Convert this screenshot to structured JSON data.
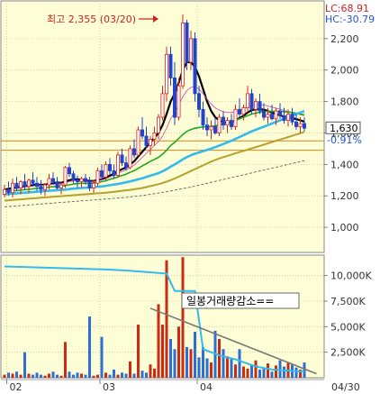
{
  "chart_data": [
    {
      "type": "candlestick",
      "panel": "price",
      "x_axis": {
        "ticks": [
          "02",
          "03",
          "04",
          "04/30"
        ]
      },
      "y_axis": {
        "position": "right",
        "ticks": [
          1000,
          1200,
          1400,
          1600,
          1800,
          2000,
          2200
        ],
        "tick_labels": [
          "1,000",
          "1,200",
          "1,400",
          "1,600",
          "1,800",
          "2,000",
          "2,200"
        ],
        "ylim": [
          840,
          2440
        ]
      },
      "annotation": {
        "text": "최고 2,355 (03/20)",
        "value": 2355
      },
      "indicators": {
        "lc": "LC:68.91",
        "hc": "HC:-30.79"
      },
      "last_price": {
        "label": "1,630",
        "value": 1630
      },
      "change": {
        "label": "-0.91%"
      },
      "reference_levels": [
        1490,
        1550
      ],
      "candles": [
        [
          1210,
          1270,
          1190,
          1240
        ],
        [
          1240,
          1290,
          1200,
          1220
        ],
        [
          1220,
          1310,
          1190,
          1280
        ],
        [
          1280,
          1320,
          1230,
          1250
        ],
        [
          1250,
          1300,
          1210,
          1290
        ],
        [
          1290,
          1340,
          1240,
          1260
        ],
        [
          1260,
          1310,
          1220,
          1300
        ],
        [
          1300,
          1350,
          1260,
          1280
        ],
        [
          1280,
          1320,
          1230,
          1260
        ],
        [
          1260,
          1300,
          1210,
          1240
        ],
        [
          1240,
          1280,
          1200,
          1270
        ],
        [
          1270,
          1340,
          1240,
          1310
        ],
        [
          1310,
          1350,
          1270,
          1290
        ],
        [
          1290,
          1320,
          1240,
          1250
        ],
        [
          1250,
          1290,
          1210,
          1270
        ],
        [
          1270,
          1390,
          1250,
          1380
        ],
        [
          1380,
          1410,
          1320,
          1340
        ],
        [
          1340,
          1360,
          1280,
          1300
        ],
        [
          1300,
          1330,
          1250,
          1290
        ],
        [
          1290,
          1320,
          1250,
          1310
        ],
        [
          1310,
          1340,
          1270,
          1290
        ],
        [
          1290,
          1320,
          1230,
          1250
        ],
        [
          1250,
          1300,
          1220,
          1280
        ],
        [
          1280,
          1380,
          1260,
          1360
        ],
        [
          1360,
          1400,
          1300,
          1320
        ],
        [
          1320,
          1420,
          1300,
          1400
        ],
        [
          1400,
          1440,
          1340,
          1360
        ],
        [
          1360,
          1400,
          1310,
          1330
        ],
        [
          1330,
          1480,
          1320,
          1460
        ],
        [
          1460,
          1500,
          1390,
          1410
        ],
        [
          1410,
          1450,
          1360,
          1380
        ],
        [
          1380,
          1520,
          1370,
          1500
        ],
        [
          1500,
          1560,
          1440,
          1460
        ],
        [
          1460,
          1640,
          1450,
          1620
        ],
        [
          1620,
          1700,
          1560,
          1580
        ],
        [
          1580,
          1640,
          1500,
          1520
        ],
        [
          1520,
          1580,
          1460,
          1560
        ],
        [
          1560,
          1640,
          1520,
          1600
        ],
        [
          1600,
          1720,
          1560,
          1700
        ],
        [
          1700,
          1900,
          1680,
          1850
        ],
        [
          1850,
          2150,
          1800,
          2100
        ],
        [
          2100,
          2150,
          1900,
          1950
        ],
        [
          1950,
          2050,
          1650,
          1700
        ],
        [
          1700,
          1950,
          1680,
          1900
        ],
        [
          1900,
          2355,
          1880,
          2300
        ],
        [
          2300,
          2320,
          2000,
          2050
        ],
        [
          2050,
          2250,
          2000,
          2200
        ],
        [
          2200,
          2240,
          1800,
          1850
        ],
        [
          1850,
          1900,
          1700,
          1750
        ],
        [
          1750,
          1800,
          1620,
          1650
        ],
        [
          1650,
          1700,
          1580,
          1620
        ],
        [
          1620,
          1680,
          1560,
          1640
        ],
        [
          1640,
          1700,
          1590,
          1600
        ],
        [
          1600,
          1720,
          1580,
          1700
        ],
        [
          1700,
          1740,
          1620,
          1650
        ],
        [
          1650,
          1700,
          1600,
          1680
        ],
        [
          1680,
          1720,
          1620,
          1640
        ],
        [
          1640,
          1780,
          1620,
          1750
        ],
        [
          1750,
          1820,
          1700,
          1720
        ],
        [
          1720,
          1780,
          1680,
          1760
        ],
        [
          1760,
          1900,
          1740,
          1850
        ],
        [
          1850,
          1880,
          1720,
          1750
        ],
        [
          1750,
          1820,
          1700,
          1800
        ],
        [
          1800,
          1850,
          1720,
          1740
        ],
        [
          1740,
          1790,
          1680,
          1700
        ],
        [
          1700,
          1760,
          1660,
          1720
        ],
        [
          1720,
          1780,
          1680,
          1690
        ],
        [
          1690,
          1760,
          1650,
          1740
        ],
        [
          1740,
          1790,
          1690,
          1710
        ],
        [
          1710,
          1760,
          1660,
          1680
        ],
        [
          1680,
          1750,
          1640,
          1720
        ],
        [
          1720,
          1760,
          1650,
          1670
        ],
        [
          1670,
          1720,
          1620,
          1640
        ],
        [
          1640,
          1700,
          1600,
          1660
        ],
        [
          1660,
          1700,
          1610,
          1630
        ]
      ],
      "moving_averages": [
        {
          "color": "#000000",
          "width": 2.2,
          "values": [
            1240,
            1245,
            1250,
            1255,
            1258,
            1262,
            1265,
            1268,
            1270,
            1270,
            1272,
            1275,
            1280,
            1282,
            1284,
            1290,
            1300,
            1305,
            1305,
            1302,
            1298,
            1295,
            1295,
            1300,
            1305,
            1315,
            1330,
            1340,
            1355,
            1370,
            1380,
            1400,
            1420,
            1450,
            1480,
            1510,
            1540,
            1570,
            1600,
            1650,
            1720,
            1800,
            1850,
            1920,
            2000,
            2050,
            2050,
            2020,
            1960,
            1880,
            1800,
            1740,
            1700,
            1680,
            1670,
            1665,
            1668,
            1680,
            1695,
            1710,
            1730,
            1745,
            1750,
            1752,
            1748,
            1740,
            1730,
            1720,
            1712,
            1705,
            1700,
            1695,
            1688,
            1680,
            1672
          ]
        },
        {
          "color": "#cc44cc",
          "width": 0.8,
          "values": [
            1230,
            1235,
            1240,
            1245,
            1250,
            1255,
            1258,
            1262,
            1265,
            1266,
            1268,
            1270,
            1274,
            1276,
            1278,
            1282,
            1290,
            1295,
            1296,
            1295,
            1293,
            1292,
            1292,
            1296,
            1300,
            1308,
            1320,
            1330,
            1342,
            1355,
            1365,
            1380,
            1395,
            1420,
            1445,
            1470,
            1495,
            1520,
            1545,
            1580,
            1630,
            1690,
            1730,
            1780,
            1830,
            1870,
            1890,
            1895,
            1880,
            1850,
            1815,
            1785,
            1760,
            1745,
            1735,
            1730,
            1730,
            1735,
            1745,
            1755,
            1765,
            1775,
            1778,
            1780,
            1778,
            1772,
            1765,
            1758,
            1750,
            1743,
            1737,
            1730,
            1723,
            1716,
            1710
          ]
        },
        {
          "color": "#22aa22",
          "width": 1.6,
          "values": [
            1225,
            1228,
            1230,
            1233,
            1236,
            1240,
            1242,
            1245,
            1248,
            1250,
            1252,
            1255,
            1258,
            1260,
            1262,
            1265,
            1270,
            1275,
            1278,
            1280,
            1280,
            1280,
            1282,
            1286,
            1290,
            1296,
            1305,
            1312,
            1320,
            1330,
            1338,
            1350,
            1360,
            1375,
            1390,
            1405,
            1420,
            1432,
            1445,
            1465,
            1490,
            1520,
            1540,
            1565,
            1590,
            1610,
            1622,
            1630,
            1635,
            1638,
            1640,
            1642,
            1645,
            1650,
            1656,
            1662,
            1670,
            1680,
            1690,
            1700,
            1710,
            1720,
            1726,
            1732,
            1735,
            1737,
            1738,
            1738,
            1737,
            1735,
            1733,
            1730,
            1725,
            1720,
            1715
          ]
        },
        {
          "color": "#33bbee",
          "width": 2.6,
          "values": [
            1210,
            1212,
            1214,
            1216,
            1218,
            1220,
            1222,
            1224,
            1226,
            1228,
            1230,
            1232,
            1234,
            1236,
            1238,
            1240,
            1243,
            1246,
            1248,
            1250,
            1252,
            1253,
            1255,
            1258,
            1260,
            1264,
            1268,
            1272,
            1276,
            1281,
            1286,
            1292,
            1298,
            1305,
            1312,
            1320,
            1328,
            1336,
            1344,
            1356,
            1370,
            1386,
            1400,
            1416,
            1432,
            1446,
            1458,
            1468,
            1476,
            1484,
            1492,
            1500,
            1510,
            1520,
            1530,
            1540,
            1550,
            1562,
            1574,
            1586,
            1598,
            1610,
            1620,
            1630,
            1640,
            1650,
            1660,
            1670,
            1680,
            1690,
            1700,
            1710,
            1720,
            1730,
            1740
          ]
        },
        {
          "color": "#b8a030",
          "width": 2,
          "values": [
            1170,
            1172,
            1174,
            1176,
            1178,
            1180,
            1182,
            1184,
            1186,
            1188,
            1190,
            1192,
            1194,
            1196,
            1198,
            1200,
            1202,
            1204,
            1206,
            1208,
            1210,
            1212,
            1214,
            1216,
            1218,
            1220,
            1223,
            1226,
            1229,
            1232,
            1235,
            1238,
            1242,
            1246,
            1250,
            1256,
            1262,
            1268,
            1274,
            1282,
            1290,
            1300,
            1310,
            1322,
            1334,
            1346,
            1358,
            1370,
            1382,
            1394,
            1406,
            1418,
            1428,
            1438,
            1446,
            1454,
            1462,
            1470,
            1478,
            1486,
            1494,
            1502,
            1510,
            1518,
            1526,
            1534,
            1542,
            1550,
            1558,
            1566,
            1574,
            1582,
            1590,
            1598,
            1606
          ]
        },
        {
          "color": "#555555",
          "width": 0.8,
          "dash": true,
          "values": [
            1130,
            1132,
            1134,
            1136,
            1138,
            1140,
            1142,
            1144,
            1146,
            1148,
            1150,
            1152,
            1154,
            1156,
            1158,
            1160,
            1162,
            1164,
            1166,
            1168,
            1170,
            1172,
            1174,
            1176,
            1178,
            1180,
            1182,
            1184,
            1186,
            1188,
            1190,
            1193,
            1196,
            1199,
            1202,
            1206,
            1210,
            1214,
            1218,
            1222,
            1226,
            1231,
            1236,
            1241,
            1246,
            1251,
            1256,
            1262,
            1268,
            1274,
            1280,
            1286,
            1292,
            1298,
            1304,
            1310,
            1316,
            1322,
            1328,
            1334,
            1340,
            1346,
            1352,
            1358,
            1364,
            1370,
            1376,
            1382,
            1388,
            1394,
            1400,
            1406,
            1412,
            1418,
            1424
          ]
        }
      ]
    },
    {
      "type": "bar",
      "panel": "volume",
      "y_axis": {
        "position": "right",
        "ticks": [
          2500,
          5000,
          7500,
          10000
        ],
        "tick_labels": [
          "2,500K",
          "5,000K",
          "7,500K",
          "10,000K"
        ],
        "ylim": [
          0,
          12000
        ]
      },
      "annotation": {
        "text": "일봉거래량감소=="
      },
      "volume_ma": [
        [
          0,
          10900
        ],
        [
          25,
          10600
        ],
        [
          30,
          10500
        ],
        [
          40,
          10200
        ],
        [
          42,
          8500
        ],
        [
          47,
          8500
        ],
        [
          49,
          2800
        ],
        [
          53,
          2200
        ],
        [
          57,
          1800
        ],
        [
          62,
          1100
        ],
        [
          66,
          800
        ],
        [
          70,
          700
        ],
        [
          74,
          600
        ]
      ],
      "trend_line": [
        [
          36,
          6800
        ],
        [
          77,
          400
        ]
      ],
      "values": [
        300,
        500,
        400,
        600,
        300,
        2500,
        400,
        300,
        500,
        300,
        200,
        400,
        600,
        300,
        200,
        3500,
        600,
        300,
        500,
        400,
        300,
        6000,
        200,
        300,
        4000,
        500,
        300,
        800,
        300,
        500,
        400,
        1600,
        400,
        5200,
        700,
        500,
        1300,
        900,
        7200,
        5200,
        11500,
        3800,
        2800,
        5000,
        11800,
        3000,
        2800,
        4500,
        2000,
        3000,
        1900,
        1500,
        4600,
        3800,
        2800,
        2100,
        1900,
        1300,
        2800,
        1100,
        900,
        1300,
        1700,
        800,
        1000,
        1400,
        600,
        1200,
        1700,
        1100,
        1500,
        1300,
        1000,
        800,
        1500
      ]
    }
  ]
}
